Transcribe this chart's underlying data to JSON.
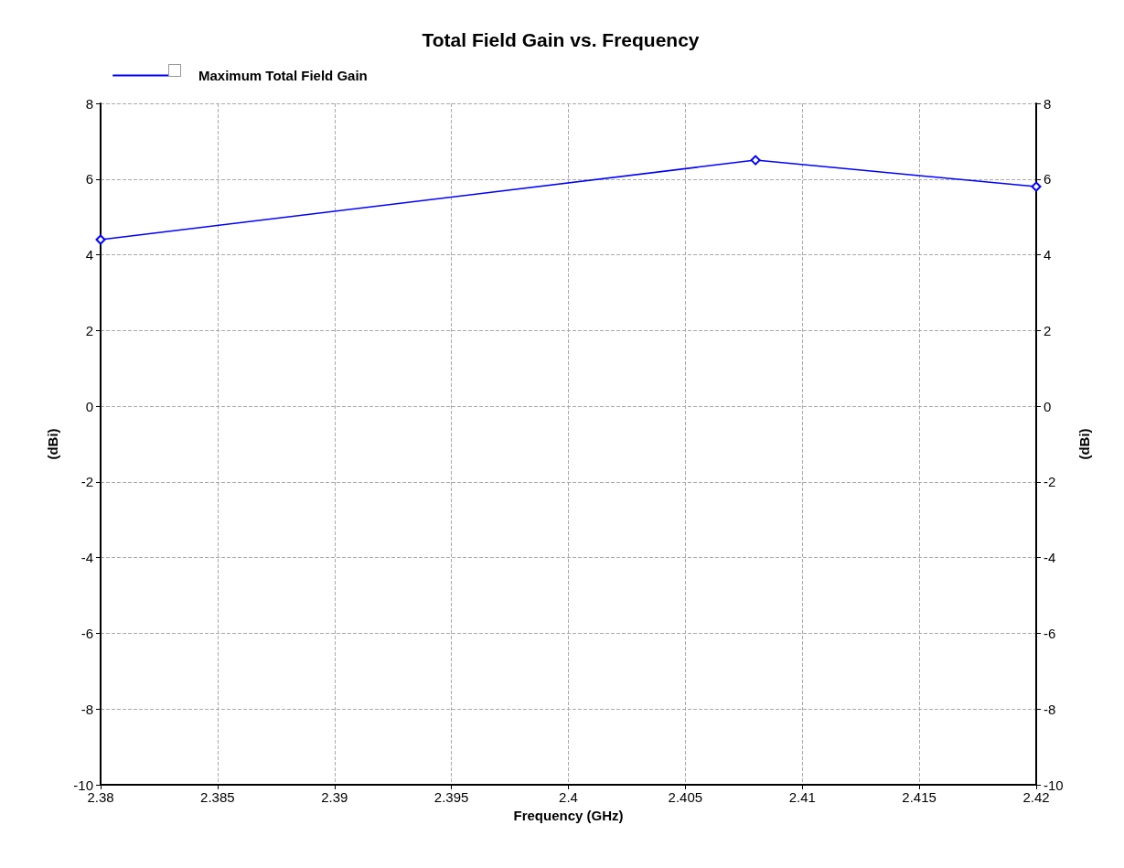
{
  "chart_data": {
    "type": "line",
    "title": "Total Field Gain vs. Frequency",
    "xlabel": "Frequency (GHz)",
    "ylabel": "(dBi)",
    "y2label": "(dBi)",
    "x": [
      2.38,
      2.408,
      2.42
    ],
    "series": [
      {
        "name": "Maximum Total Field Gain",
        "color": "#0000ff",
        "values": [
          4.4,
          6.5,
          5.8
        ]
      }
    ],
    "xlim": [
      2.38,
      2.42
    ],
    "xticks": [
      2.38,
      2.385,
      2.39,
      2.395,
      2.4,
      2.405,
      2.41,
      2.415,
      2.42
    ],
    "ylim": [
      -10,
      8
    ],
    "yticks": [
      -10,
      -8,
      -6,
      -4,
      -2,
      0,
      2,
      4,
      6,
      8
    ],
    "y2lim": [
      -10,
      8
    ],
    "y2ticks": [
      -10,
      -8,
      -6,
      -4,
      -2,
      0,
      2,
      4,
      6,
      8
    ],
    "grid": true,
    "legend": "top left",
    "marker": "diamond",
    "line_style": "solid"
  }
}
